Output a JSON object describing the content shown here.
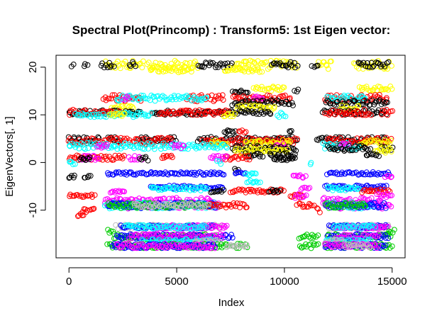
{
  "chart_data": {
    "type": "scatter",
    "title": "Spectral Plot(Princomp) : Transform5: 1st Eigen vector:",
    "xlabel": "Index",
    "ylabel": "EigenVectors[, 1]",
    "xlim": [
      -600,
      15600
    ],
    "ylim": [
      -20,
      22.5
    ],
    "x_ticks": [
      0,
      5000,
      10000,
      15000
    ],
    "x_tick_labels": [
      "0",
      "5000",
      "10000",
      "15000"
    ],
    "y_ticks": [
      -10,
      0,
      10,
      20
    ],
    "y_tick_labels": [
      "-10",
      "0",
      "10",
      "20"
    ],
    "grid": false,
    "legend": "none",
    "marker": "open-circle",
    "colors": {
      "black": "#000000",
      "red": "#ff0000",
      "green": "#00cd00",
      "blue": "#0000ff",
      "cyan": "#00ffff",
      "magenta": "#ff00ff",
      "yellow": "#ffff00",
      "gray": "#bebebe"
    },
    "bands": [
      {
        "y": 20.5,
        "color": "yellow",
        "x_ranges": [
          [
            1700,
            3500
          ],
          [
            3600,
            6000
          ],
          [
            7600,
            8800
          ],
          [
            8900,
            10600
          ],
          [
            11500,
            12200
          ],
          [
            13200,
            15000
          ]
        ],
        "spread": 0.9
      },
      {
        "y": 20.5,
        "color": "black",
        "x_ranges": [
          [
            150,
            250
          ],
          [
            700,
            900
          ],
          [
            1500,
            2100
          ],
          [
            2800,
            3100
          ],
          [
            6000,
            7600
          ],
          [
            9400,
            10600
          ],
          [
            11300,
            11600
          ],
          [
            13400,
            14800
          ]
        ],
        "spread": 0.6
      },
      {
        "y": 19.5,
        "color": "yellow",
        "x_ranges": [
          [
            3800,
            5800
          ],
          [
            7200,
            9000
          ]
        ],
        "spread": 0.6
      },
      {
        "y": 15.5,
        "color": "yellow",
        "x_ranges": [
          [
            8600,
            10000
          ],
          [
            13500,
            15000
          ]
        ],
        "spread": 0.5
      },
      {
        "y": 15.0,
        "color": "black",
        "x_ranges": [
          [
            7600,
            8300
          ],
          [
            10500,
            10700
          ]
        ],
        "spread": 0.4
      },
      {
        "y": 13.5,
        "color": "red",
        "x_ranges": [
          [
            1600,
            3400
          ],
          [
            5500,
            7200
          ],
          [
            7600,
            10300
          ],
          [
            11900,
            14800
          ]
        ],
        "spread": 0.7
      },
      {
        "y": 13.5,
        "color": "cyan",
        "x_ranges": [
          [
            2200,
            6400
          ],
          [
            12000,
            13800
          ]
        ],
        "spread": 0.6
      },
      {
        "y": 13.5,
        "color": "magenta",
        "x_ranges": [
          [
            2500,
            2800
          ],
          [
            8600,
            9000
          ]
        ],
        "spread": 0.4
      },
      {
        "y": 12.5,
        "color": "black",
        "x_ranges": [
          [
            7600,
            10400
          ],
          [
            11900,
            14800
          ]
        ],
        "spread": 0.6
      },
      {
        "y": 11.5,
        "color": "yellow",
        "x_ranges": [
          [
            2000,
            3000
          ],
          [
            7800,
            9600
          ],
          [
            12600,
            13500
          ]
        ],
        "spread": 0.5
      },
      {
        "y": 10.5,
        "color": "black",
        "x_ranges": [
          [
            0,
            1700
          ],
          [
            1800,
            3400
          ],
          [
            3900,
            6600
          ],
          [
            6700,
            9400
          ],
          [
            11800,
            14800
          ]
        ],
        "spread": 0.5
      },
      {
        "y": 10.5,
        "color": "red",
        "x_ranges": [
          [
            0,
            2400
          ],
          [
            4200,
            7400
          ],
          [
            11900,
            14000
          ],
          [
            14500,
            15000
          ]
        ],
        "spread": 0.6
      },
      {
        "y": 10.0,
        "color": "cyan",
        "x_ranges": [
          [
            300,
            1700
          ],
          [
            1900,
            3800
          ],
          [
            9700,
            10100
          ]
        ],
        "spread": 0.5
      },
      {
        "y": 10.0,
        "color": "yellow",
        "x_ranges": [
          [
            1900,
            2600
          ],
          [
            7200,
            7700
          ]
        ],
        "spread": 0.4
      },
      {
        "y": 6.5,
        "color": "black",
        "x_ranges": [
          [
            7200,
            7700
          ],
          [
            10200,
            10400
          ]
        ],
        "spread": 0.3
      },
      {
        "y": 6.5,
        "color": "red",
        "x_ranges": [
          [
            7900,
            8200
          ]
        ],
        "spread": 0.3
      },
      {
        "y": 4.8,
        "color": "black",
        "x_ranges": [
          [
            0,
            1400
          ],
          [
            1800,
            2400
          ],
          [
            3200,
            5000
          ],
          [
            6000,
            10600
          ],
          [
            11500,
            14800
          ]
        ],
        "spread": 0.6
      },
      {
        "y": 4.5,
        "color": "red",
        "x_ranges": [
          [
            0,
            1500
          ],
          [
            1600,
            4800
          ],
          [
            6200,
            8200
          ],
          [
            8400,
            10600
          ],
          [
            12000,
            15000
          ]
        ],
        "spread": 0.7
      },
      {
        "y": 4.2,
        "color": "yellow",
        "x_ranges": [
          [
            6600,
            7400
          ],
          [
            8200,
            10300
          ],
          [
            13500,
            15000
          ]
        ],
        "spread": 0.6
      },
      {
        "y": 3.5,
        "color": "cyan",
        "x_ranges": [
          [
            0,
            4000
          ],
          [
            4200,
            7400
          ],
          [
            11800,
            13600
          ]
        ],
        "spread": 0.7
      },
      {
        "y": 3.5,
        "color": "magenta",
        "x_ranges": [
          [
            1300,
            1800
          ],
          [
            4800,
            5400
          ],
          [
            9600,
            10100
          ],
          [
            12600,
            13000
          ]
        ],
        "spread": 0.5
      },
      {
        "y": 3.0,
        "color": "black",
        "x_ranges": [
          [
            7600,
            10600
          ],
          [
            12000,
            14000
          ],
          [
            14500,
            15000
          ]
        ],
        "spread": 0.6
      },
      {
        "y": 2.5,
        "color": "yellow",
        "x_ranges": [
          [
            7700,
            10200
          ],
          [
            14200,
            15000
          ]
        ],
        "spread": 0.5
      },
      {
        "y": 1.5,
        "color": "black",
        "x_ranges": [
          [
            8200,
            9000
          ],
          [
            9300,
            10500
          ],
          [
            13800,
            14400
          ]
        ],
        "spread": 0.5
      },
      {
        "y": 1.0,
        "color": "red",
        "x_ranges": [
          [
            0,
            2600
          ],
          [
            4300,
            4800
          ],
          [
            7100,
            8400
          ]
        ],
        "spread": 0.5
      },
      {
        "y": 1.0,
        "color": "magenta",
        "x_ranges": [
          [
            600,
            1400
          ],
          [
            2800,
            3400
          ],
          [
            6600,
            7300
          ]
        ],
        "spread": 0.5
      },
      {
        "y": 0.8,
        "color": "black",
        "x_ranges": [
          [
            500,
            1000
          ],
          [
            3300,
            3700
          ],
          [
            9500,
            10500
          ]
        ],
        "spread": 0.4
      },
      {
        "y": 0.0,
        "color": "cyan",
        "x_ranges": [
          [
            0,
            300
          ],
          [
            6900,
            7100
          ],
          [
            11200,
            11300
          ]
        ],
        "spread": 0.6
      },
      {
        "y": -1.5,
        "color": "black",
        "x_ranges": [
          [
            7700,
            7900
          ]
        ],
        "spread": 0.2
      },
      {
        "y": -2.3,
        "color": "blue",
        "x_ranges": [
          [
            1800,
            7200
          ],
          [
            7700,
            8200
          ],
          [
            12000,
            14900
          ]
        ],
        "spread": 0.3
      },
      {
        "y": -2.5,
        "color": "cyan",
        "x_ranges": [
          [
            8200,
            8700
          ]
        ],
        "spread": 0.3
      },
      {
        "y": -3.0,
        "color": "black",
        "x_ranges": [
          [
            0,
            300
          ],
          [
            700,
            1000
          ]
        ],
        "spread": 0.3
      },
      {
        "y": -3.0,
        "color": "magenta",
        "x_ranges": [
          [
            10400,
            11000
          ],
          [
            14700,
            15000
          ]
        ],
        "spread": 0.4
      },
      {
        "y": -4.0,
        "color": "cyan",
        "x_ranges": [
          [
            8300,
            8900
          ]
        ],
        "spread": 0.3
      },
      {
        "y": -5.2,
        "color": "blue",
        "x_ranges": [
          [
            3800,
            7200
          ],
          [
            11900,
            14700
          ]
        ],
        "spread": 0.4
      },
      {
        "y": -5.5,
        "color": "cyan",
        "x_ranges": [
          [
            3800,
            6400
          ],
          [
            12000,
            13500
          ]
        ],
        "spread": 0.4
      },
      {
        "y": -5.5,
        "color": "magenta",
        "x_ranges": [
          [
            10800,
            11200
          ]
        ],
        "spread": 0.3
      },
      {
        "y": -6.0,
        "color": "red",
        "x_ranges": [
          [
            7500,
            10000
          ],
          [
            13600,
            14900
          ]
        ],
        "spread": 0.4
      },
      {
        "y": -6.0,
        "color": "black",
        "x_ranges": [
          [
            6600,
            7200
          ],
          [
            9300,
            9800
          ]
        ],
        "spread": 0.3
      },
      {
        "y": -6.2,
        "color": "magenta",
        "x_ranges": [
          [
            1900,
            2600
          ]
        ],
        "spread": 0.3
      },
      {
        "y": -7.0,
        "color": "red",
        "x_ranges": [
          [
            0,
            1200
          ],
          [
            10300,
            10900
          ]
        ],
        "spread": 0.3
      },
      {
        "y": -7.0,
        "color": "magenta",
        "x_ranges": [
          [
            10500,
            11000
          ],
          [
            14300,
            15000
          ]
        ],
        "spread": 0.5
      },
      {
        "y": -8.0,
        "color": "magenta",
        "x_ranges": [
          [
            1700,
            6800
          ],
          [
            11800,
            14500
          ]
        ],
        "spread": 0.6
      },
      {
        "y": -9.0,
        "color": "magenta",
        "x_ranges": [
          [
            1700,
            7000
          ],
          [
            11800,
            15000
          ]
        ],
        "spread": 0.7
      },
      {
        "y": -9.0,
        "color": "cyan",
        "x_ranges": [
          [
            1700,
            7000
          ],
          [
            12000,
            14200
          ]
        ],
        "spread": 0.7
      },
      {
        "y": -9.0,
        "color": "blue",
        "x_ranges": [
          [
            1800,
            6800
          ],
          [
            11900,
            14700
          ]
        ],
        "spread": 0.6
      },
      {
        "y": -9.0,
        "color": "green",
        "x_ranges": [
          [
            1800,
            6500
          ],
          [
            11900,
            13800
          ]
        ],
        "spread": 0.6
      },
      {
        "y": -9.0,
        "color": "red",
        "x_ranges": [
          [
            6500,
            8300
          ],
          [
            10600,
            11400
          ]
        ],
        "spread": 0.5
      },
      {
        "y": -9.0,
        "color": "gray",
        "x_ranges": [
          [
            3000,
            6500
          ]
        ],
        "spread": 0.4
      },
      {
        "y": -10.0,
        "color": "red",
        "x_ranges": [
          [
            600,
            1200
          ],
          [
            11500,
            11700
          ]
        ],
        "spread": 0.5
      },
      {
        "y": -11.0,
        "color": "red",
        "x_ranges": [
          [
            400,
            700
          ]
        ],
        "spread": 0.3
      },
      {
        "y": -13.5,
        "color": "gray",
        "x_ranges": [
          [
            2200,
            7200
          ],
          [
            12100,
            14900
          ]
        ],
        "spread": 0.5
      },
      {
        "y": -13.5,
        "color": "blue",
        "x_ranges": [
          [
            2400,
            6800
          ],
          [
            12100,
            14800
          ]
        ],
        "spread": 0.4
      },
      {
        "y": -13.5,
        "color": "magenta",
        "x_ranges": [
          [
            4000,
            7400
          ],
          [
            12400,
            14800
          ]
        ],
        "spread": 0.4
      },
      {
        "y": -13.5,
        "color": "cyan",
        "x_ranges": [
          [
            2600,
            6400
          ],
          [
            12300,
            14200
          ]
        ],
        "spread": 0.4
      },
      {
        "y": -14.5,
        "color": "green",
        "x_ranges": [
          [
            1800,
            2100
          ],
          [
            14800,
            15100
          ]
        ],
        "spread": 0.5
      },
      {
        "y": -15.5,
        "color": "green",
        "x_ranges": [
          [
            2100,
            6800
          ],
          [
            10700,
            11600
          ],
          [
            12000,
            15000
          ]
        ],
        "spread": 0.5
      },
      {
        "y": -15.5,
        "color": "blue",
        "x_ranges": [
          [
            2200,
            7600
          ],
          [
            12000,
            14800
          ]
        ],
        "spread": 0.5
      },
      {
        "y": -15.5,
        "color": "magenta",
        "x_ranges": [
          [
            2800,
            7200
          ],
          [
            12400,
            14400
          ]
        ],
        "spread": 0.5
      },
      {
        "y": -16.5,
        "color": "cyan",
        "x_ranges": [
          [
            3300,
            6800
          ],
          [
            11900,
            14000
          ]
        ],
        "spread": 0.5
      },
      {
        "y": -16.5,
        "color": "gray",
        "x_ranges": [
          [
            5800,
            7000
          ],
          [
            11900,
            12800
          ]
        ],
        "spread": 0.4
      },
      {
        "y": -17.5,
        "color": "green",
        "x_ranges": [
          [
            1800,
            8300
          ],
          [
            10700,
            11600
          ],
          [
            11900,
            15000
          ]
        ],
        "spread": 0.5
      },
      {
        "y": -17.5,
        "color": "blue",
        "x_ranges": [
          [
            2000,
            6800
          ],
          [
            11900,
            14700
          ]
        ],
        "spread": 0.5
      },
      {
        "y": -17.5,
        "color": "magenta",
        "x_ranges": [
          [
            2200,
            6800
          ],
          [
            11900,
            14400
          ]
        ],
        "spread": 0.5
      },
      {
        "y": -17.5,
        "color": "gray",
        "x_ranges": [
          [
            7300,
            8300
          ],
          [
            12800,
            14000
          ]
        ],
        "spread": 0.4
      }
    ]
  }
}
